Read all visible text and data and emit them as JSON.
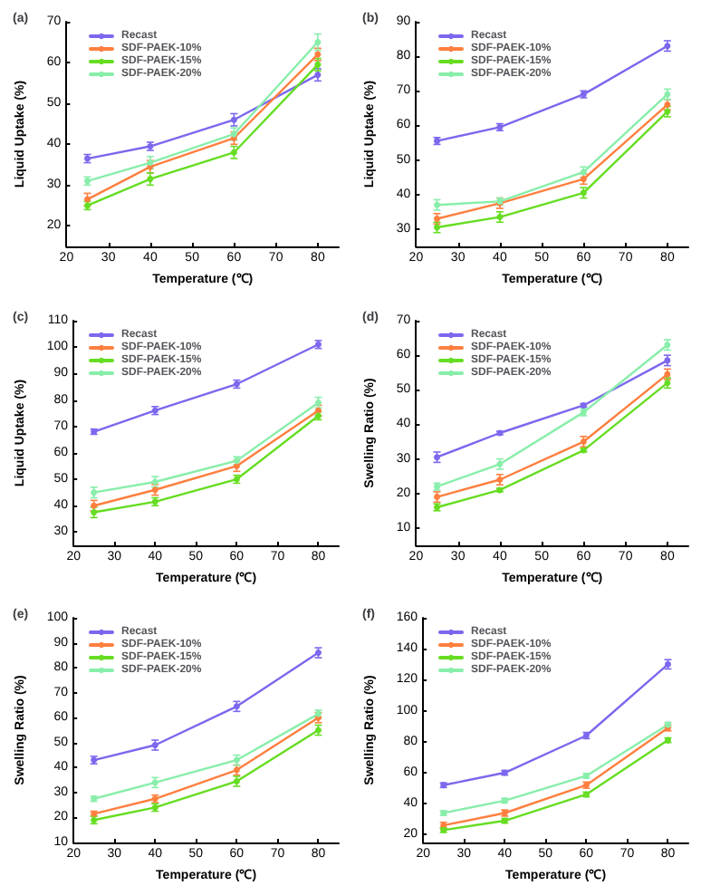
{
  "chart_data": [
    {
      "type": "line",
      "title": "(a)",
      "xlabel": "Temperature (℃)",
      "ylabel": "Liquid Uptake (%)",
      "x": [
        25,
        40,
        60,
        80
      ],
      "xlim": [
        20,
        85
      ],
      "xticks": [
        20,
        30,
        40,
        50,
        60,
        70,
        80
      ],
      "ylim": [
        15,
        70
      ],
      "yticks": [
        20,
        30,
        40,
        50,
        60,
        70
      ],
      "legend": "top left",
      "marker": "circle",
      "grid": false,
      "series": [
        {
          "name": "Recast",
          "color": "#7b68ee",
          "values": [
            36.5,
            39.5,
            46,
            57
          ],
          "errors": [
            1,
            1,
            1.5,
            1.5
          ]
        },
        {
          "name": "SDF-PAEK-10%",
          "color": "#ff7f3f",
          "values": [
            26.5,
            34.5,
            41.5,
            62
          ],
          "errors": [
            1.5,
            1.5,
            1.5,
            1.5
          ]
        },
        {
          "name": "SDF-PAEK-15%",
          "color": "#66dd22",
          "values": [
            25,
            31.5,
            38,
            59.5
          ],
          "errors": [
            1,
            1.5,
            1.5,
            1.5
          ]
        },
        {
          "name": "SDF-PAEK-20%",
          "color": "#88eeaa",
          "values": [
            31,
            35.5,
            42.5,
            65
          ],
          "errors": [
            1,
            1.5,
            1.5,
            2
          ]
        }
      ]
    },
    {
      "type": "line",
      "title": "(b)",
      "xlabel": "Temperature (℃)",
      "ylabel": "Liquid Uptake (%)",
      "x": [
        25,
        40,
        60,
        80
      ],
      "xlim": [
        20,
        85
      ],
      "xticks": [
        20,
        30,
        40,
        50,
        60,
        70,
        80
      ],
      "ylim": [
        25,
        90
      ],
      "yticks": [
        30,
        40,
        50,
        60,
        70,
        80,
        90
      ],
      "legend": "top left",
      "marker": "circle",
      "grid": false,
      "series": [
        {
          "name": "Recast",
          "color": "#7b68ee",
          "values": [
            55.5,
            59.5,
            69,
            83
          ],
          "errors": [
            1,
            1,
            1,
            1.5
          ]
        },
        {
          "name": "SDF-PAEK-10%",
          "color": "#ff7f3f",
          "values": [
            33,
            37.5,
            44.5,
            66
          ],
          "errors": [
            1.5,
            1.5,
            1.5,
            1.5
          ]
        },
        {
          "name": "SDF-PAEK-15%",
          "color": "#66dd22",
          "values": [
            30.5,
            33.5,
            40.5,
            64
          ],
          "errors": [
            1.5,
            1.5,
            1.5,
            1.5
          ]
        },
        {
          "name": "SDF-PAEK-20%",
          "color": "#88eeaa",
          "values": [
            37,
            38,
            46.5,
            69
          ],
          "errors": [
            1.5,
            1,
            1.5,
            1.5
          ]
        }
      ]
    },
    {
      "type": "line",
      "title": "(c)",
      "xlabel": "Temperature (℃)",
      "ylabel": "Liquid Uptake (%)",
      "x": [
        25,
        40,
        60,
        80
      ],
      "xlim": [
        20,
        85
      ],
      "xticks": [
        20,
        30,
        40,
        50,
        60,
        70,
        80
      ],
      "ylim": [
        25,
        110
      ],
      "yticks": [
        30,
        40,
        50,
        60,
        70,
        80,
        90,
        100,
        110
      ],
      "legend": "top left",
      "marker": "circle",
      "grid": false,
      "series": [
        {
          "name": "Recast",
          "color": "#7b68ee",
          "values": [
            68,
            76,
            86,
            101
          ],
          "errors": [
            1,
            1.5,
            1.5,
            1.5
          ]
        },
        {
          "name": "SDF-PAEK-10%",
          "color": "#ff7f3f",
          "values": [
            40,
            46,
            55,
            76
          ],
          "errors": [
            2,
            2,
            2,
            2
          ]
        },
        {
          "name": "SDF-PAEK-15%",
          "color": "#66dd22",
          "values": [
            37.5,
            41.5,
            50,
            74
          ],
          "errors": [
            2,
            1.5,
            1.5,
            1.5
          ]
        },
        {
          "name": "SDF-PAEK-20%",
          "color": "#88eeaa",
          "values": [
            45,
            49,
            57,
            79
          ],
          "errors": [
            2,
            2,
            1.5,
            2
          ]
        }
      ]
    },
    {
      "type": "line",
      "title": "(d)",
      "xlabel": "Temperature (℃)",
      "ylabel": "Swelling Ratio (%)",
      "x": [
        25,
        40,
        60,
        80
      ],
      "xlim": [
        20,
        85
      ],
      "xticks": [
        20,
        30,
        40,
        50,
        60,
        70,
        80
      ],
      "ylim": [
        5,
        70
      ],
      "yticks": [
        10,
        20,
        30,
        40,
        50,
        60,
        70
      ],
      "legend": "top left",
      "marker": "circle",
      "grid": false,
      "series": [
        {
          "name": "Recast",
          "color": "#7b68ee",
          "values": [
            30.5,
            37.5,
            45.5,
            58.5
          ],
          "errors": [
            1.5,
            0.5,
            0.5,
            1.5
          ]
        },
        {
          "name": "SDF-PAEK-10%",
          "color": "#ff7f3f",
          "values": [
            19,
            24,
            35,
            54.5
          ],
          "errors": [
            1.5,
            1.5,
            1.5,
            1.5
          ]
        },
        {
          "name": "SDF-PAEK-15%",
          "color": "#66dd22",
          "values": [
            16,
            21,
            32.5,
            52
          ],
          "errors": [
            1,
            0.5,
            0.5,
            1.5
          ]
        },
        {
          "name": "SDF-PAEK-20%",
          "color": "#88eeaa",
          "values": [
            22,
            28.5,
            43.5,
            63
          ],
          "errors": [
            1,
            1.5,
            1,
            1.5
          ]
        }
      ]
    },
    {
      "type": "line",
      "title": "(e)",
      "xlabel": "Temperature (℃)",
      "ylabel": "Swelling Ratio (%)",
      "x": [
        25,
        40,
        60,
        80
      ],
      "xlim": [
        20,
        85
      ],
      "xticks": [
        20,
        30,
        40,
        50,
        60,
        70,
        80
      ],
      "ylim": [
        10,
        100
      ],
      "yticks": [
        10,
        20,
        30,
        40,
        50,
        60,
        70,
        80,
        90,
        100
      ],
      "legend": "top left",
      "marker": "circle",
      "grid": false,
      "series": [
        {
          "name": "Recast",
          "color": "#7b68ee",
          "values": [
            43,
            49,
            64.5,
            86
          ],
          "errors": [
            1.5,
            2,
            2,
            2
          ]
        },
        {
          "name": "SDF-PAEK-10%",
          "color": "#ff7f3f",
          "values": [
            21.5,
            27.5,
            39,
            60
          ],
          "errors": [
            1,
            1.5,
            2,
            2
          ]
        },
        {
          "name": "SDF-PAEK-15%",
          "color": "#66dd22",
          "values": [
            19,
            24,
            34.5,
            55
          ],
          "errors": [
            1.5,
            1.5,
            2,
            2
          ]
        },
        {
          "name": "SDF-PAEK-20%",
          "color": "#88eeaa",
          "values": [
            27.5,
            34,
            43,
            61.5
          ],
          "errors": [
            1,
            2,
            2,
            1.5
          ]
        }
      ]
    },
    {
      "type": "line",
      "title": "(f)",
      "xlabel": "Temperature (℃)",
      "ylabel": "Swelling Ratio (%)",
      "x": [
        25,
        40,
        60,
        80
      ],
      "xlim": [
        20,
        85
      ],
      "xticks": [
        20,
        30,
        40,
        50,
        60,
        70,
        80
      ],
      "ylim": [
        15,
        160
      ],
      "yticks": [
        20,
        40,
        60,
        80,
        100,
        120,
        140,
        160
      ],
      "legend": "top left",
      "marker": "circle",
      "grid": false,
      "series": [
        {
          "name": "Recast",
          "color": "#7b68ee",
          "values": [
            52,
            60,
            84,
            130
          ],
          "errors": [
            1.5,
            1.5,
            2,
            3
          ]
        },
        {
          "name": "SDF-PAEK-10%",
          "color": "#ff7f3f",
          "values": [
            26,
            34,
            52,
            89
          ],
          "errors": [
            2,
            2,
            2,
            2
          ]
        },
        {
          "name": "SDF-PAEK-15%",
          "color": "#66dd22",
          "values": [
            23,
            29,
            46,
            81
          ],
          "errors": [
            1.5,
            1.5,
            1.5,
            1.5
          ]
        },
        {
          "name": "SDF-PAEK-20%",
          "color": "#88eeaa",
          "values": [
            34,
            42,
            58,
            91
          ],
          "errors": [
            1.5,
            1.5,
            1.5,
            1.5
          ]
        }
      ]
    }
  ]
}
